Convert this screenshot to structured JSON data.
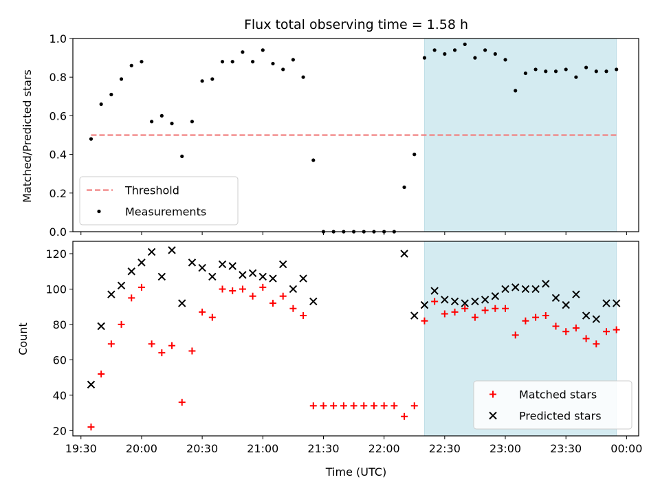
{
  "chart_data": [
    {
      "type": "scatter",
      "title": "Flux total observing time = 1.58 h",
      "xlabel": "",
      "ylabel": "Matched/Predicted stars",
      "ylim": [
        0,
        1.0
      ],
      "yticks": [
        0.0,
        0.2,
        0.4,
        0.6,
        0.8,
        1.0
      ],
      "ytick_labels": [
        "0.0",
        "0.2",
        "0.4",
        "0.6",
        "0.8",
        "1.0"
      ],
      "xlim": [
        "19:26",
        "00:06"
      ],
      "shaded_region": {
        "start": "22:20",
        "end": "23:55",
        "color": "#d4ebf1"
      },
      "threshold": {
        "name": "Threshold",
        "value": 0.5,
        "start": "19:35",
        "end": "23:55",
        "color": "#f08080",
        "style": "dashed"
      },
      "legend_position": "lower-left",
      "series": [
        {
          "name": "Measurements",
          "color": "#000000",
          "marker": "dot",
          "x": [
            "19:35",
            "19:40",
            "19:45",
            "19:50",
            "19:55",
            "20:00",
            "20:05",
            "20:10",
            "20:15",
            "20:20",
            "20:25",
            "20:30",
            "20:35",
            "20:40",
            "20:45",
            "20:50",
            "20:55",
            "21:00",
            "21:05",
            "21:10",
            "21:15",
            "21:20",
            "21:25",
            "21:30",
            "21:35",
            "21:40",
            "21:45",
            "21:50",
            "21:55",
            "22:00",
            "22:05",
            "22:10",
            "22:15",
            "22:20",
            "22:25",
            "22:30",
            "22:35",
            "22:40",
            "22:45",
            "22:50",
            "22:55",
            "23:00",
            "23:05",
            "23:10",
            "23:15",
            "23:20",
            "23:25",
            "23:30",
            "23:35",
            "23:40",
            "23:45",
            "23:50",
            "23:55"
          ],
          "y": [
            0.48,
            0.66,
            0.71,
            0.79,
            0.86,
            0.88,
            0.57,
            0.6,
            0.56,
            0.39,
            0.57,
            0.78,
            0.79,
            0.88,
            0.88,
            0.93,
            0.88,
            0.94,
            0.87,
            0.84,
            0.89,
            0.8,
            0.37,
            0.0,
            0.0,
            0.0,
            0.0,
            0.0,
            0.0,
            0.0,
            0.0,
            0.23,
            0.4,
            0.9,
            0.94,
            0.92,
            0.94,
            0.97,
            0.9,
            0.94,
            0.92,
            0.89,
            0.73,
            0.82,
            0.84,
            0.83,
            0.83,
            0.84,
            0.8,
            0.85,
            0.83,
            0.83,
            0.84
          ]
        }
      ]
    },
    {
      "type": "scatter",
      "title": "",
      "xlabel": "Time (UTC)",
      "ylabel": "Count",
      "ylim": [
        17,
        127
      ],
      "yticks": [
        20,
        40,
        60,
        80,
        100,
        120
      ],
      "ytick_labels": [
        "20",
        "40",
        "60",
        "80",
        "100",
        "120"
      ],
      "xlim": [
        "19:26",
        "00:06"
      ],
      "xticks": [
        "19:30",
        "20:00",
        "20:30",
        "21:00",
        "21:30",
        "22:00",
        "22:30",
        "23:00",
        "23:30",
        "00:00"
      ],
      "shaded_region": {
        "start": "22:20",
        "end": "23:55",
        "color": "#d4ebf1"
      },
      "legend_position": "lower-right",
      "series": [
        {
          "name": "Matched stars",
          "color": "#ff0000",
          "marker": "plus",
          "x": [
            "19:35",
            "19:40",
            "19:45",
            "19:50",
            "19:55",
            "20:00",
            "20:05",
            "20:10",
            "20:15",
            "20:20",
            "20:25",
            "20:30",
            "20:35",
            "20:40",
            "20:45",
            "20:50",
            "20:55",
            "21:00",
            "21:05",
            "21:10",
            "21:15",
            "21:20",
            "21:25",
            "21:30",
            "21:35",
            "21:40",
            "21:45",
            "21:50",
            "21:55",
            "22:00",
            "22:05",
            "22:10",
            "22:15",
            "22:20",
            "22:25",
            "22:30",
            "22:35",
            "22:40",
            "22:45",
            "22:50",
            "22:55",
            "23:00",
            "23:05",
            "23:10",
            "23:15",
            "23:20",
            "23:25",
            "23:30",
            "23:35",
            "23:40",
            "23:45",
            "23:50",
            "23:55"
          ],
          "y": [
            22,
            52,
            69,
            80,
            95,
            101,
            69,
            64,
            68,
            36,
            65,
            87,
            84,
            100,
            99,
            100,
            96,
            101,
            92,
            96,
            89,
            85,
            34,
            34,
            34,
            34,
            34,
            34,
            34,
            34,
            34,
            28,
            34,
            82,
            93,
            86,
            87,
            89,
            84,
            88,
            89,
            89,
            74,
            82,
            84,
            85,
            79,
            76,
            78,
            72,
            69,
            76,
            77
          ]
        },
        {
          "name": "Predicted stars",
          "color": "#000000",
          "marker": "x",
          "x": [
            "19:35",
            "19:40",
            "19:45",
            "19:50",
            "19:55",
            "20:00",
            "20:05",
            "20:10",
            "20:15",
            "20:20",
            "20:25",
            "20:30",
            "20:35",
            "20:40",
            "20:45",
            "20:50",
            "20:55",
            "21:00",
            "21:05",
            "21:10",
            "21:15",
            "21:20",
            "21:25",
            "22:10",
            "22:15",
            "22:20",
            "22:25",
            "22:30",
            "22:35",
            "22:40",
            "22:45",
            "22:50",
            "22:55",
            "23:00",
            "23:05",
            "23:10",
            "23:15",
            "23:20",
            "23:25",
            "23:30",
            "23:35",
            "23:40",
            "23:45",
            "23:50",
            "23:55"
          ],
          "y": [
            46,
            79,
            97,
            102,
            110,
            115,
            121,
            107,
            122,
            92,
            115,
            112,
            107,
            114,
            113,
            108,
            109,
            107,
            106,
            114,
            100,
            106,
            93,
            120,
            85,
            91,
            99,
            94,
            93,
            92,
            93,
            94,
            96,
            100,
            101,
            100,
            100,
            103,
            95,
            91,
            97,
            85,
            83,
            92,
            92
          ]
        }
      ]
    }
  ]
}
